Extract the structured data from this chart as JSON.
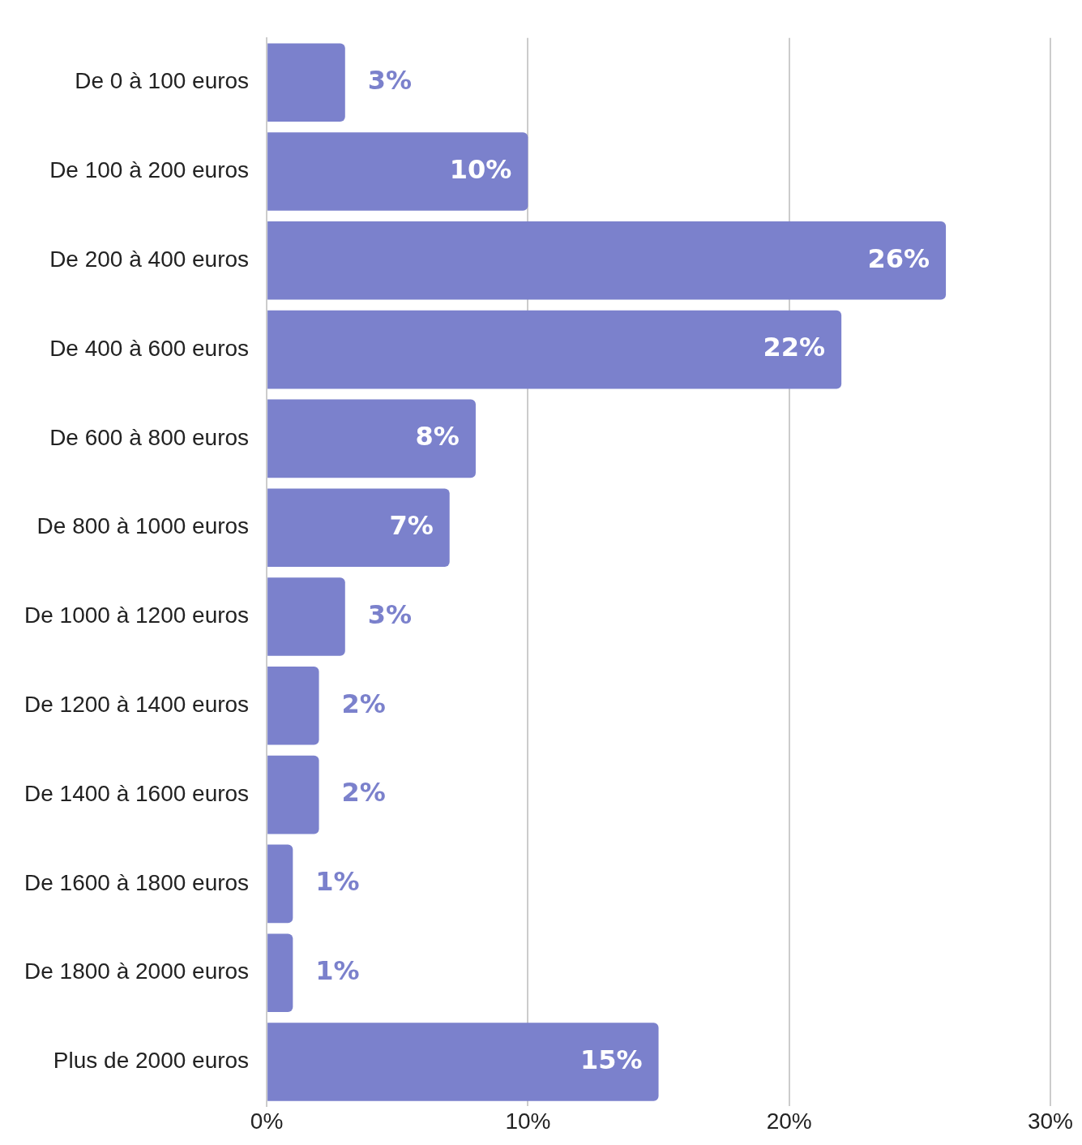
{
  "chart_data": {
    "type": "bar",
    "orientation": "horizontal",
    "categories": [
      "De 0 à 100 euros",
      "De 100 à 200 euros",
      "De 200 à 400 euros",
      "De 400 à 600 euros",
      "De 600 à 800 euros",
      "De 800 à 1000 euros",
      "De 1000 à 1200 euros",
      "De 1200 à 1400 euros",
      "De 1400 à 1600 euros",
      "De 1600 à 1800 euros",
      "De 1800 à 2000 euros",
      "Plus de 2000 euros"
    ],
    "values": [
      3,
      10,
      26,
      22,
      8,
      7,
      3,
      2,
      2,
      1,
      1,
      15
    ],
    "value_labels": [
      "3%",
      "10%",
      "26%",
      "22%",
      "8%",
      "7%",
      "3%",
      "2%",
      "2%",
      "1%",
      "1%",
      "15%"
    ],
    "color": "#7b81cc",
    "xlim": [
      0,
      30
    ],
    "xticks": [
      {
        "value": 0,
        "label": "0%"
      },
      {
        "value": 10,
        "label": "10%"
      },
      {
        "value": 20,
        "label": "20%"
      },
      {
        "value": 30,
        "label": "30%"
      }
    ],
    "grid": "x",
    "legend": false
  }
}
